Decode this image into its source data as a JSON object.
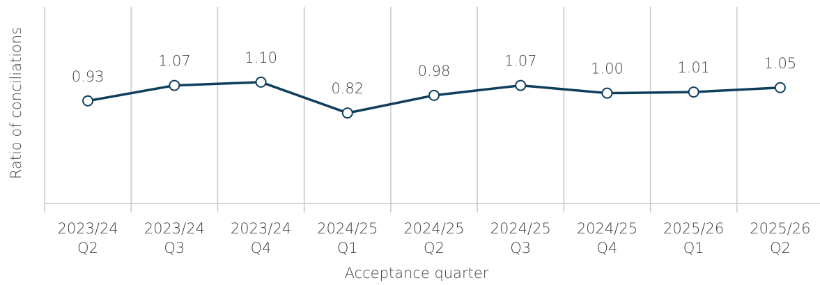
{
  "chart_data": {
    "type": "line",
    "x_label": "Acceptance quarter",
    "y_label": "Ratio of conciliations",
    "categories": [
      [
        "2023/24",
        "Q2"
      ],
      [
        "2023/24",
        "Q3"
      ],
      [
        "2023/24",
        "Q4"
      ],
      [
        "2024/25",
        "Q1"
      ],
      [
        "2024/25",
        "Q2"
      ],
      [
        "2024/25",
        "Q3"
      ],
      [
        "2024/25",
        "Q4"
      ],
      [
        "2025/26",
        "Q1"
      ],
      [
        "2025/26",
        "Q2"
      ]
    ],
    "series": [
      {
        "name": "Ratio of conciliations",
        "color": "#0f3e5c",
        "values": [
          0.93,
          1.07,
          1.1,
          0.82,
          0.98,
          1.07,
          1.0,
          1.01,
          1.05
        ],
        "value_labels": [
          "0.93",
          "1.07",
          "1.10",
          "0.82",
          "0.98",
          "1.07",
          "1.00",
          "1.01",
          "1.05"
        ]
      }
    ],
    "ylim": [
      0,
      1.8
    ],
    "grid": true
  }
}
